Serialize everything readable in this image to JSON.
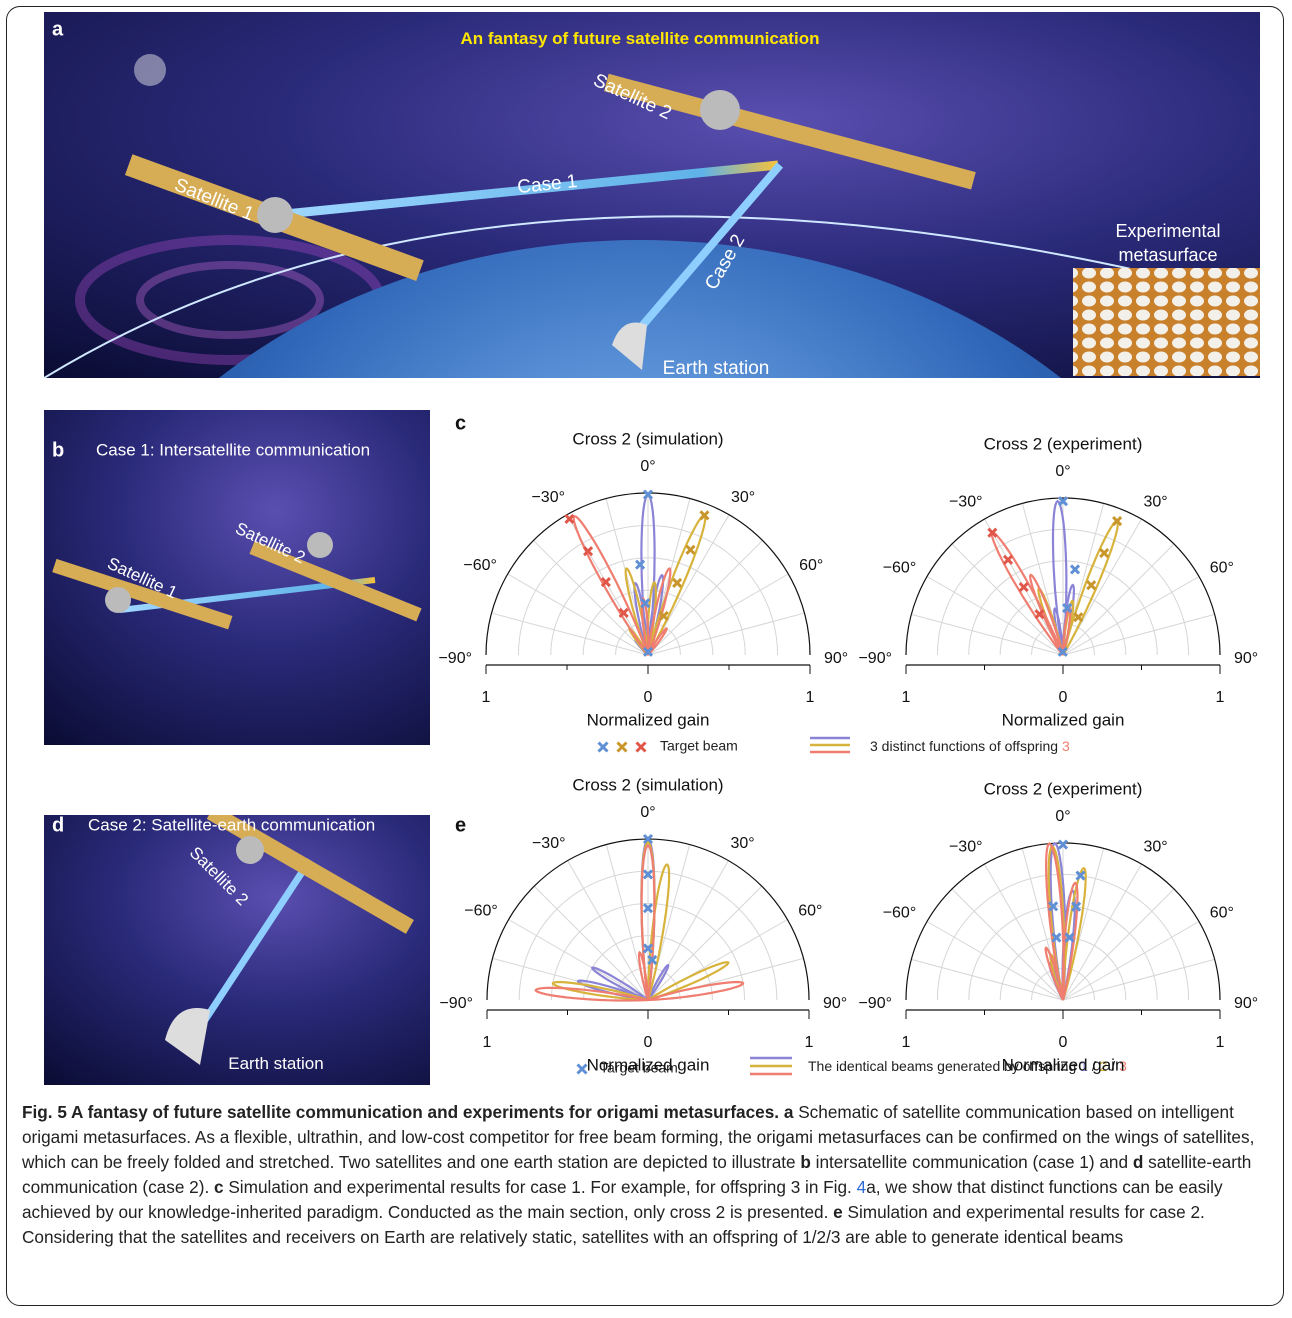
{
  "panel_a": {
    "label": "a",
    "title": "An fantasy of future satellite communication",
    "satellite_1": "Satellite 1",
    "satellite_2": "Satellite 2",
    "case_1": "Case 1",
    "case_2": "Case 2",
    "earth_station": "Earth station",
    "inset_line_1": "Experimental",
    "inset_line_2": "metasurface"
  },
  "panel_b": {
    "label": "b",
    "title": "Case 1: Intersatellite communication",
    "satellite_1": "Satellite 1",
    "satellite_2": "Satellite 2"
  },
  "panel_d": {
    "label": "d",
    "title": "Case 2: Satellite-earth communication",
    "satellite_2": "Satellite 2",
    "earth_station": "Earth station"
  },
  "panel_c": {
    "label": "c",
    "plots": [
      {
        "type": "polar",
        "title": "Cross 2 (simulation)",
        "xlabel": "Normalized gain",
        "xlim": [
          -1,
          1
        ],
        "xticks": [
          {
            "value": -1,
            "label": "1"
          },
          0,
          1
        ],
        "xminor": [
          -0.5,
          0.5
        ],
        "angle_ticks": [
          {
            "value": -90,
            "label": "−90°"
          },
          {
            "value": -60,
            "label": "−60°"
          },
          {
            "value": -30,
            "label": "−30°"
          },
          {
            "value": 0,
            "label": "0°"
          },
          {
            "value": 30,
            "label": "30°"
          },
          {
            "value": 60,
            "label": "60°"
          },
          {
            "value": 90,
            "label": "90°"
          }
        ],
        "rgrid": [
          0.2,
          0.4,
          0.6,
          0.8
        ],
        "agrid": [
          -75,
          -60,
          -45,
          -30,
          -15,
          0,
          15,
          30,
          45,
          60,
          75
        ],
        "series": [
          {
            "color": "#8b84d6",
            "angles": [
              0,
              -10,
              10,
              -40
            ],
            "values": [
              0.99,
              0.45,
              0.5,
              0.12
            ]
          },
          {
            "color": "#d8b33c",
            "angles": [
              22,
              -14,
              5,
              -35
            ],
            "values": [
              0.93,
              0.55,
              0.45,
              0.2
            ]
          },
          {
            "color": "#ef7d70",
            "angles": [
              -28,
              14,
              -5,
              35
            ],
            "values": [
              0.97,
              0.55,
              0.35,
              0.2
            ]
          }
        ],
        "targets": [
          {
            "color": "#5f8fd4",
            "angles": [
              0,
              -5,
              -3,
              0
            ],
            "values": [
              0.99,
              0.56,
              0.32,
              0.02
            ]
          },
          {
            "color": "#c8962b",
            "angles": [
              22,
              22,
              22,
              22
            ],
            "values": [
              0.93,
              0.7,
              0.48,
              0.26
            ]
          },
          {
            "color": "#e0574a",
            "angles": [
              -30,
              -30,
              -30,
              -30
            ],
            "values": [
              0.97,
              0.74,
              0.52,
              0.3
            ]
          }
        ]
      },
      {
        "type": "polar",
        "title": "Cross 2 (experiment)",
        "xlabel": "Normalized gain",
        "xlim": [
          -1,
          1
        ],
        "xticks": [
          {
            "value": -1,
            "label": "1"
          },
          0,
          1
        ],
        "xminor": [
          -0.5,
          0.5
        ],
        "angle_ticks": [
          {
            "value": -90,
            "label": "−90°"
          },
          {
            "value": -60,
            "label": "−60°"
          },
          {
            "value": -30,
            "label": "−30°"
          },
          {
            "value": 0,
            "label": "0°"
          },
          {
            "value": 30,
            "label": "30°"
          },
          {
            "value": 60,
            "label": "60°"
          },
          {
            "value": 90,
            "label": "90°"
          }
        ],
        "rgrid": [
          0.2,
          0.4,
          0.6,
          0.8
        ],
        "agrid": [
          -75,
          -60,
          -45,
          -30,
          -15,
          0,
          15,
          30,
          45,
          60,
          75
        ],
        "series": [
          {
            "color": "#8b84d6",
            "angles": [
              -2,
              8,
              -10
            ],
            "values": [
              0.98,
              0.45,
              0.3
            ]
          },
          {
            "color": "#d8b33c",
            "angles": [
              22,
              -20,
              10
            ],
            "values": [
              0.92,
              0.45,
              0.35
            ]
          },
          {
            "color": "#ef7d70",
            "angles": [
              -30,
              -22,
              8
            ],
            "values": [
              0.9,
              0.55,
              0.3
            ]
          }
        ],
        "targets": [
          {
            "color": "#5f8fd4",
            "angles": [
              0,
              8,
              5,
              -5
            ],
            "values": [
              0.98,
              0.55,
              0.3,
              0.02
            ]
          },
          {
            "color": "#c8962b",
            "angles": [
              22,
              22,
              22,
              22
            ],
            "values": [
              0.92,
              0.7,
              0.48,
              0.26
            ]
          },
          {
            "color": "#e0574a",
            "angles": [
              -30,
              -30,
              -30,
              -30
            ],
            "values": [
              0.9,
              0.7,
              0.5,
              0.3
            ]
          }
        ]
      }
    ],
    "legend": {
      "target": "Target beam",
      "functions": "3 distinct functions of offspring ",
      "offspring": "3"
    }
  },
  "panel_e": {
    "label": "e",
    "plots": [
      {
        "type": "polar",
        "title": "Cross 2 (simulation)",
        "xlabel": "Normalized gain",
        "xlim": [
          -1,
          1
        ],
        "xticks": [
          {
            "value": -1,
            "label": "1"
          },
          0,
          1
        ],
        "xminor": [
          -0.5,
          0.5
        ],
        "angle_ticks": [
          {
            "value": -90,
            "label": "−90°"
          },
          {
            "value": -60,
            "label": "−60°"
          },
          {
            "value": -30,
            "label": "−30°"
          },
          {
            "value": 0,
            "label": "0°"
          },
          {
            "value": 30,
            "label": "30°"
          },
          {
            "value": 60,
            "label": "60°"
          },
          {
            "value": 90,
            "label": "90°"
          }
        ],
        "rgrid": [
          0.2,
          0.4,
          0.6,
          0.8
        ],
        "agrid": [
          -75,
          -60,
          -45,
          -30,
          -15,
          0,
          15,
          30,
          45,
          60,
          75
        ],
        "series": [
          {
            "color": "#8b84d6",
            "angles": [
              0,
              -75,
              -60,
              30
            ],
            "values": [
              1.0,
              0.45,
              0.4,
              0.25
            ]
          },
          {
            "color": "#d8b33c",
            "angles": [
              0,
              8,
              -80,
              65
            ],
            "values": [
              0.98,
              0.85,
              0.6,
              0.55
            ]
          },
          {
            "color": "#ef7d70",
            "angles": [
              0,
              -85,
              80,
              -10
            ],
            "values": [
              0.96,
              0.7,
              0.6,
              0.3
            ]
          }
        ],
        "targets": [
          {
            "color": "#5f8fd4",
            "angles": [
              0,
              0,
              0,
              0,
              6
            ],
            "values": [
              1.0,
              0.78,
              0.57,
              0.32,
              0.25
            ]
          }
        ]
      },
      {
        "type": "polar",
        "title": "Cross 2 (experiment)",
        "xlabel": "Normalized gain",
        "xlim": [
          -1,
          1
        ],
        "xticks": [
          {
            "value": -1,
            "label": "1"
          },
          0,
          1
        ],
        "xminor": [
          -0.5,
          0.5
        ],
        "angle_ticks": [
          {
            "value": -90,
            "label": "−90°"
          },
          {
            "value": -60,
            "label": "−60°"
          },
          {
            "value": -30,
            "label": "−30°"
          },
          {
            "value": 0,
            "label": "0°"
          },
          {
            "value": 30,
            "label": "30°"
          },
          {
            "value": 60,
            "label": "60°"
          },
          {
            "value": 90,
            "label": "90°"
          }
        ],
        "rgrid": [
          0.2,
          0.4,
          0.6,
          0.8
        ],
        "agrid": [
          -75,
          -60,
          -45,
          -30,
          -15,
          0,
          15,
          30,
          45,
          60,
          75
        ],
        "series": [
          {
            "color": "#8b84d6",
            "angles": [
              -3,
              5,
              -20
            ],
            "values": [
              1.0,
              0.7,
              0.25
            ]
          },
          {
            "color": "#d8b33c",
            "angles": [
              -4,
              9,
              -15
            ],
            "values": [
              0.98,
              0.85,
              0.3
            ]
          },
          {
            "color": "#ef7d70",
            "angles": [
              -5,
              6,
              -18
            ],
            "values": [
              1.0,
              0.75,
              0.35
            ]
          }
        ],
        "targets": [
          {
            "color": "#5f8fd4",
            "angles": [
              0,
              8,
              8,
              -6,
              -6,
              6
            ],
            "values": [
              0.99,
              0.8,
              0.6,
              0.6,
              0.4,
              0.4
            ]
          }
        ]
      }
    ],
    "legend": {
      "target": "Target beam",
      "beams": "The identical beams generated by offspring ",
      "o1": "1",
      "sep": " / ",
      "o2": "2",
      "o3": "3"
    }
  },
  "caption": {
    "title": "Fig. 5 A fantasy of future satellite communication and experiments for origami metasurfaces.",
    "segments": [
      {
        "text": "a",
        "bold": true
      },
      {
        "text": " Schematic of satellite communication based on intelligent origami metasurfaces. As a flexible, ultrathin, and low-cost competitor for free beam forming, the origami metasurfaces can be confirmed on the wings of satellites, which can be freely folded and stretched. Two satellites and one earth station are depicted to illustrate "
      },
      {
        "text": "b",
        "bold": true
      },
      {
        "text": " intersatellite communication (case 1) and "
      },
      {
        "text": "d",
        "bold": true
      },
      {
        "text": " satellite-earth communication (case 2). "
      },
      {
        "text": "c",
        "bold": true
      },
      {
        "text": " Simulation and experimental results for case 1. For example, for offspring 3 in Fig. "
      },
      {
        "text": "4",
        "link": true
      },
      {
        "text": "a, we show that distinct functions can be easily achieved by our knowledge-inherited paradigm. Conducted as the main section, only cross 2 is presented. "
      },
      {
        "text": "e",
        "bold": true
      },
      {
        "text": " Simulation and experimental results for case 2. Considering that the satellites and receivers on Earth are relatively static, satellites with an offspring of 1/2/3 are able to generate identical beams"
      }
    ]
  }
}
